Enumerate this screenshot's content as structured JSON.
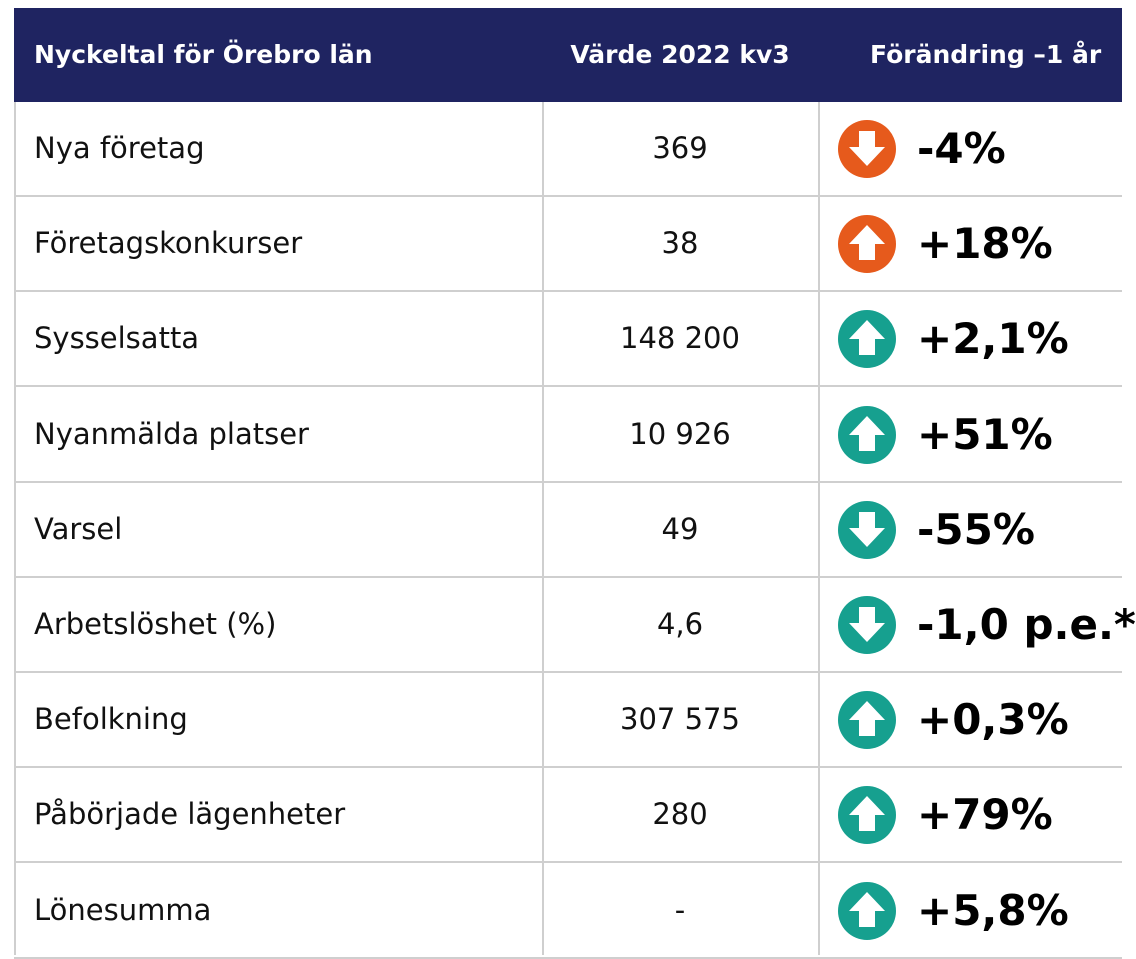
{
  "header": [
    "Nyckeltal för Örebro län",
    "Värde 2022 kv3",
    "Förändring –1 år"
  ],
  "table": {
    "rows": [
      {
        "label": "Nya företag",
        "value": "369",
        "change": "-4%",
        "color": "#e65a1c"
      },
      {
        "label": "Företagskonkurser",
        "value": "38",
        "change": "+18%",
        "color": "#e65a1c"
      },
      {
        "label": "Sysselsatta",
        "value": "148 200",
        "change": "+2,1%",
        "color": "#16a08f"
      },
      {
        "label": "Nyanmälda platser",
        "value": "10 926",
        "change": "+51%",
        "color": "#16a08f"
      },
      {
        "label": "Varsel",
        "value": "49",
        "change": "-55%",
        "color": "#16a08f"
      },
      {
        "label": "Arbetslöshet (%)",
        "value": "4,6",
        "change": "-1,0 p.e.*",
        "color": "#16a08f"
      },
      {
        "label": "Befolkning",
        "value": "307 575",
        "change": "+0,3%",
        "color": "#16a08f"
      },
      {
        "label": "Påbörjade lägenheter",
        "value": "280",
        "change": "+79%",
        "color": "#16a08f"
      },
      {
        "label": "Lönesumma",
        "value": "-",
        "change": "+5,8%",
        "color": "#16a08f"
      }
    ]
  }
}
